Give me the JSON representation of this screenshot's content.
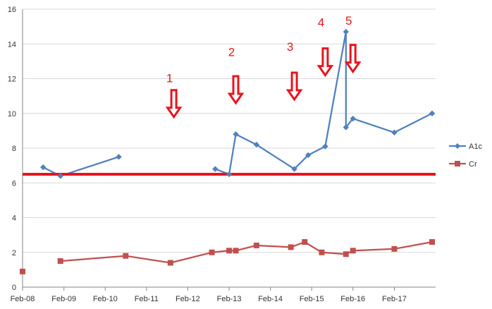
{
  "chart_data": {
    "type": "line",
    "title": "",
    "xlabel": "",
    "ylabel": "",
    "x_ticks": [
      "Feb-08",
      "Feb-09",
      "Feb-10",
      "Feb-11",
      "Feb-12",
      "Feb-13",
      "Feb-14",
      "Feb-15",
      "Feb-16",
      "Feb-17"
    ],
    "y_ticks": [
      "0",
      "2",
      "4",
      "6",
      "8",
      "10",
      "12",
      "14",
      "16"
    ],
    "ylim": [
      0,
      16
    ],
    "xlim": [
      "2008-02-01",
      "2018-02-01"
    ],
    "grid": "horizontal",
    "legend_position": "right",
    "series": [
      {
        "name": "A1c",
        "color": "#4f81bd",
        "marker": "diamond",
        "segments": [
          [
            {
              "x": "2008-08-01",
              "y": 6.9
            },
            {
              "x": "2009-01-01",
              "y": 6.4
            },
            {
              "x": "2010-06-01",
              "y": 7.5
            }
          ],
          [
            {
              "x": "2012-10-01",
              "y": 6.8
            },
            {
              "x": "2013-02-01",
              "y": 6.5
            },
            {
              "x": "2013-04-01",
              "y": 8.8
            },
            {
              "x": "2013-10-01",
              "y": 8.2
            },
            {
              "x": "2014-09-01",
              "y": 6.8
            },
            {
              "x": "2015-01-01",
              "y": 7.6
            },
            {
              "x": "2015-06-01",
              "y": 8.1
            },
            {
              "x": "2015-12-01",
              "y": 14.7
            },
            {
              "x": "2015-12-01",
              "y": 9.2
            },
            {
              "x": "2016-02-01",
              "y": 9.7
            },
            {
              "x": "2017-02-01",
              "y": 8.9
            },
            {
              "x": "2018-01-01",
              "y": 10.0
            }
          ]
        ]
      },
      {
        "name": "Cr",
        "color": "#c0504d",
        "marker": "square",
        "segments": [
          [
            {
              "x": "2008-02-01",
              "y": 0.9
            }
          ],
          [
            {
              "x": "2009-01-01",
              "y": 1.5
            },
            {
              "x": "2010-08-01",
              "y": 1.8
            },
            {
              "x": "2011-09-01",
              "y": 1.4
            },
            {
              "x": "2012-09-01",
              "y": 2.0
            },
            {
              "x": "2013-02-01",
              "y": 2.1
            },
            {
              "x": "2013-04-01",
              "y": 2.1
            },
            {
              "x": "2013-10-01",
              "y": 2.4
            },
            {
              "x": "2014-08-01",
              "y": 2.3
            },
            {
              "x": "2014-12-01",
              "y": 2.6
            },
            {
              "x": "2015-05-01",
              "y": 2.0
            },
            {
              "x": "2015-12-01",
              "y": 1.9
            },
            {
              "x": "2016-02-01",
              "y": 2.1
            },
            {
              "x": "2017-02-01",
              "y": 2.2
            },
            {
              "x": "2018-01-01",
              "y": 2.6
            }
          ]
        ]
      }
    ],
    "reference_line": {
      "y": 6.5,
      "color": "#e8141e"
    },
    "annotations": [
      {
        "label": "1",
        "x": "2011-10-01",
        "arrow_y": 9.8,
        "label_y": 11.8
      },
      {
        "label": "2",
        "x": "2013-04-01",
        "arrow_y": 10.6,
        "label_y": 13.3
      },
      {
        "label": "3",
        "x": "2014-09-01",
        "arrow_y": 10.8,
        "label_y": 13.6
      },
      {
        "label": "4",
        "x": "2015-06-01",
        "arrow_y": 12.2,
        "label_y": 15.0
      },
      {
        "label": "5",
        "x": "2016-02-01",
        "arrow_y": 12.4,
        "label_y": 15.1
      }
    ],
    "annotation_color": "#e8141e"
  }
}
